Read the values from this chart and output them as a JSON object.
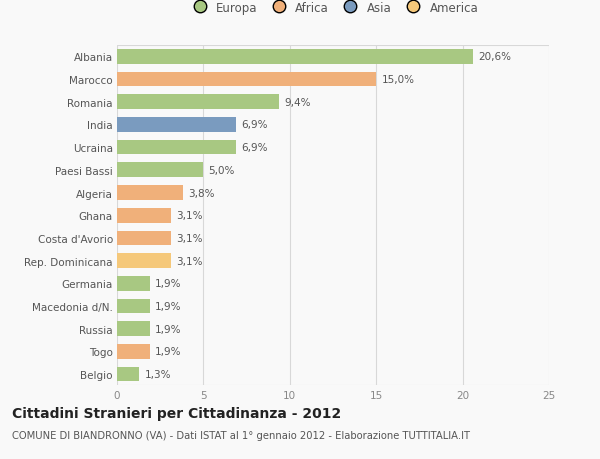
{
  "categories": [
    "Albania",
    "Marocco",
    "Romania",
    "India",
    "Ucraina",
    "Paesi Bassi",
    "Algeria",
    "Ghana",
    "Costa d'Avorio",
    "Rep. Dominicana",
    "Germania",
    "Macedonia d/N.",
    "Russia",
    "Togo",
    "Belgio"
  ],
  "values": [
    20.6,
    15.0,
    9.4,
    6.9,
    6.9,
    5.0,
    3.8,
    3.1,
    3.1,
    3.1,
    1.9,
    1.9,
    1.9,
    1.9,
    1.3
  ],
  "labels": [
    "20,6%",
    "15,0%",
    "9,4%",
    "6,9%",
    "6,9%",
    "5,0%",
    "3,8%",
    "3,1%",
    "3,1%",
    "3,1%",
    "1,9%",
    "1,9%",
    "1,9%",
    "1,9%",
    "1,3%"
  ],
  "colors": [
    "#a8c882",
    "#f0b07a",
    "#a8c882",
    "#7a9bbf",
    "#a8c882",
    "#a8c882",
    "#f0b07a",
    "#f0b07a",
    "#f0b07a",
    "#f5c87a",
    "#a8c882",
    "#a8c882",
    "#a8c882",
    "#f0b07a",
    "#a8c882"
  ],
  "legend": [
    {
      "label": "Europa",
      "color": "#a8c882"
    },
    {
      "label": "Africa",
      "color": "#f0b07a"
    },
    {
      "label": "Asia",
      "color": "#7a9bbf"
    },
    {
      "label": "America",
      "color": "#f5c87a"
    }
  ],
  "xlim": [
    0,
    25
  ],
  "xticks": [
    0,
    5,
    10,
    15,
    20,
    25
  ],
  "title": "Cittadini Stranieri per Cittadinanza - 2012",
  "subtitle": "COMUNE DI BIANDRONNO (VA) - Dati ISTAT al 1° gennaio 2012 - Elaborazione TUTTITALIA.IT",
  "bg_color": "#f9f9f9",
  "grid_color": "#d8d8d8",
  "bar_height": 0.65,
  "label_fontsize": 7.5,
  "tick_fontsize": 7.5,
  "title_fontsize": 10,
  "subtitle_fontsize": 7.2
}
